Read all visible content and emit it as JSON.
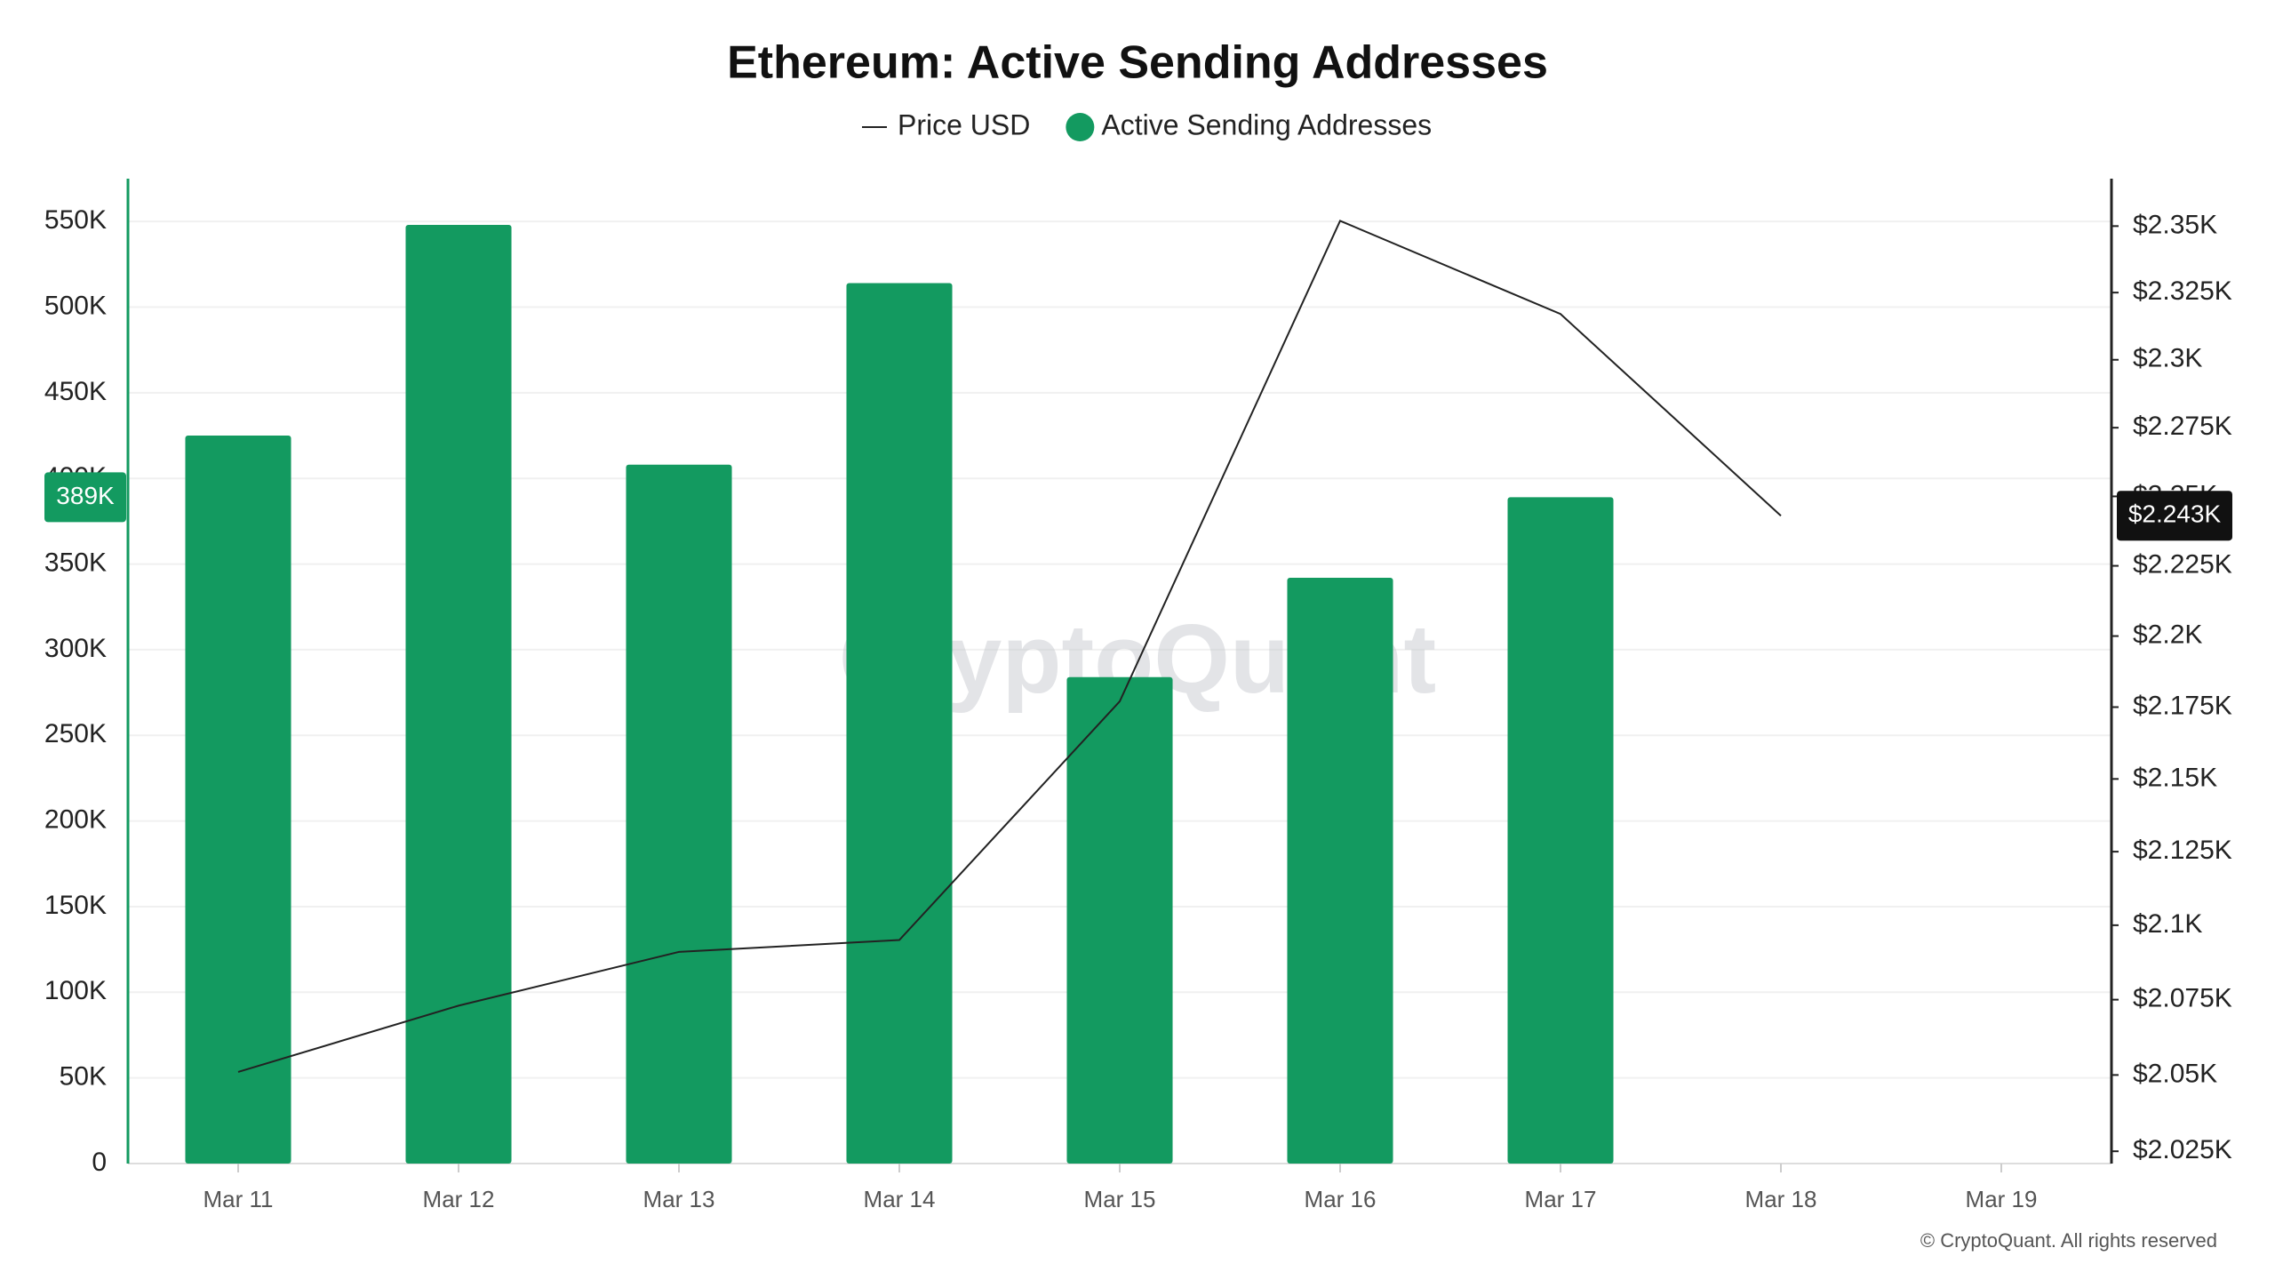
{
  "chart_data": {
    "type": "bar",
    "title": "Ethereum: Active Sending Addresses",
    "watermark": "CryptoQuant",
    "copyright": "© CryptoQuant. All rights reserved",
    "categories": [
      "Mar 11",
      "Mar 12",
      "Mar 13",
      "Mar 14",
      "Mar 15",
      "Mar 16",
      "Mar 17",
      "Mar 18",
      "Mar 19"
    ],
    "series": [
      {
        "name": "Price USD",
        "type": "line",
        "axis": "y2",
        "color": "#222222",
        "values": [
          2051,
          2073,
          2091,
          2095,
          2177,
          2352,
          2317,
          2243,
          null
        ],
        "value_labels": [
          null,
          null,
          null,
          null,
          null,
          null,
          null,
          "$2.243K",
          null
        ]
      },
      {
        "name": "Active Sending Addresses",
        "type": "bar",
        "color": "#139a60",
        "values": [
          425000,
          548000,
          408000,
          514000,
          284000,
          342000,
          389000,
          null,
          null
        ],
        "value_labels": [
          null,
          null,
          null,
          null,
          null,
          null,
          "389K",
          null,
          null
        ]
      }
    ],
    "ylim": [
      0,
      575000
    ],
    "yticks": [
      0,
      {
        "value": 50000,
        "label": "50K"
      },
      {
        "value": 100000,
        "label": "100K"
      },
      {
        "value": 150000,
        "label": "150K"
      },
      {
        "value": 200000,
        "label": "200K"
      },
      {
        "value": 250000,
        "label": "250K"
      },
      {
        "value": 300000,
        "label": "300K"
      },
      {
        "value": 350000,
        "label": "350K"
      },
      {
        "value": 400000,
        "label": "400K"
      },
      {
        "value": 450000,
        "label": "450K"
      },
      {
        "value": 500000,
        "label": "500K"
      },
      {
        "value": 550000,
        "label": "550K"
      }
    ],
    "y2lim": [
      2021,
      2368
    ],
    "y2scale": "log",
    "y2ticks": [
      {
        "value": 2025,
        "label": "$2.025K"
      },
      {
        "value": 2050,
        "label": "$2.05K"
      },
      {
        "value": 2075,
        "label": "$2.075K"
      },
      {
        "value": 2100,
        "label": "$2.1K"
      },
      {
        "value": 2125,
        "label": "$2.125K"
      },
      {
        "value": 2150,
        "label": "$2.15K"
      },
      {
        "value": 2175,
        "label": "$2.175K"
      },
      {
        "value": 2200,
        "label": "$2.2K"
      },
      {
        "value": 2225,
        "label": "$2.225K"
      },
      {
        "value": 2250,
        "label": "$2.25K"
      },
      {
        "value": 2275,
        "label": "$2.275K"
      },
      {
        "value": 2300,
        "label": "$2.3K"
      },
      {
        "value": 2325,
        "label": "$2.325K"
      },
      {
        "value": 2350,
        "label": "$2.35K"
      }
    ],
    "grid": true
  }
}
